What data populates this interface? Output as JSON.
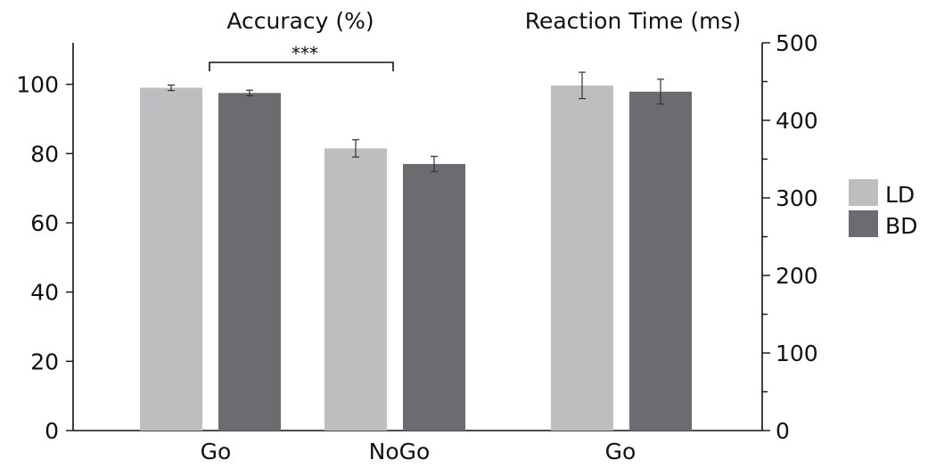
{
  "colors": {
    "LD": "#bdbec0",
    "BD": "#6b6c70",
    "axis": "#111111"
  },
  "chart_data": {
    "type": "bar",
    "panels": [
      {
        "title": "Accuracy (%)",
        "axis": "left",
        "categories": [
          "Go",
          "NoGo"
        ],
        "series": [
          {
            "name": "LD",
            "values": [
              99,
              81.5
            ],
            "errors": [
              0.8,
              2.5
            ]
          },
          {
            "name": "BD",
            "values": [
              97.5,
              77
            ],
            "errors": [
              0.8,
              2.2
            ]
          }
        ]
      },
      {
        "title": "Reaction Time (ms)",
        "axis": "right",
        "categories": [
          "Go"
        ],
        "series": [
          {
            "name": "LD",
            "values": [
              445
            ],
            "errors": [
              17
            ]
          },
          {
            "name": "BD",
            "values": [
              437
            ],
            "errors": [
              16
            ]
          }
        ]
      }
    ],
    "left_axis": {
      "ylim": [
        0,
        112
      ],
      "ticks": [
        0,
        20,
        40,
        60,
        80,
        100
      ]
    },
    "right_axis": {
      "ylim": [
        0,
        500
      ],
      "ticks": [
        0,
        100,
        200,
        300,
        400,
        500
      ],
      "minor_ticks": [
        50,
        150,
        250,
        350,
        450
      ]
    },
    "legend": {
      "placement": "right",
      "entries": [
        "LD",
        "BD"
      ]
    },
    "annotation": {
      "text": "***",
      "between": [
        "Go",
        "NoGo"
      ]
    },
    "grid": false
  }
}
